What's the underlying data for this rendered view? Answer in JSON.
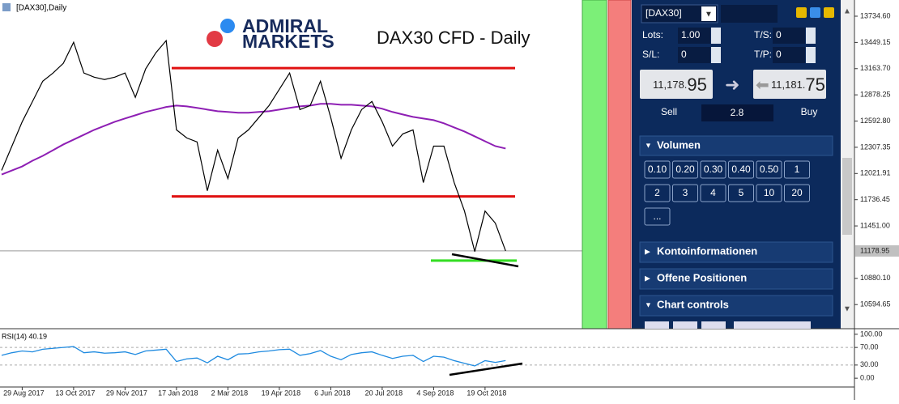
{
  "header": {
    "symbol": "[DAX30],Daily",
    "logo_top": "ADMIRAL",
    "logo_bottom": "MARKETS",
    "title": "DAX30 CFD - Daily"
  },
  "price_chart": {
    "categories": [
      null,
      null,
      "29 Aug 2017",
      null,
      null,
      null,
      null,
      "13 Oct 2017",
      null,
      null,
      null,
      null,
      "29 Nov 2017",
      null,
      null,
      null,
      null,
      "17 Jan 2018",
      null,
      null,
      null,
      null,
      "2 Mar 2018",
      null,
      null,
      null,
      null,
      "19 Apr 2018",
      null,
      null,
      null,
      null,
      "6 Jun 2018",
      null,
      null,
      null,
      null,
      "20 Jul 2018",
      null,
      null,
      null,
      null,
      "4 Sep 2018",
      null,
      null,
      null,
      null,
      "19 Oct 2018",
      null,
      null
    ],
    "close": [
      12055,
      12320,
      12585,
      12806,
      13027,
      13116,
      13222,
      13451,
      13116,
      13071,
      13045,
      13071,
      13116,
      12851,
      13160,
      13337,
      13469,
      12497,
      12409,
      12366,
      11834,
      12276,
      11967,
      12409,
      12497,
      12630,
      12762,
      12939,
      13116,
      12718,
      12762,
      13027,
      12630,
      12187,
      12497,
      12718,
      12806,
      12585,
      12320,
      12453,
      12497,
      11923,
      12320,
      12320,
      11923,
      11613,
      11172,
      11613,
      11481,
      11178.95
    ],
    "ma": [
      12011,
      12055,
      12099,
      12161,
      12214,
      12276,
      12338,
      12391,
      12444,
      12497,
      12541,
      12585,
      12621,
      12656,
      12692,
      12718,
      12746,
      12762,
      12753,
      12736,
      12718,
      12700,
      12692,
      12683,
      12683,
      12692,
      12700,
      12718,
      12736,
      12753,
      12762,
      12780,
      12780,
      12771,
      12771,
      12762,
      12753,
      12727,
      12692,
      12665,
      12638,
      12621,
      12603,
      12568,
      12523,
      12479,
      12426,
      12373,
      12320,
      12294
    ],
    "ma_color": "#8e1fb4",
    "ylim": [
      10332,
      13911
    ],
    "yticks": [
      {
        "value": 13734.6,
        "label": "13734.60"
      },
      13449.15,
      {
        "value": 13163.7,
        "label": "13163.70"
      },
      12878.25,
      {
        "value": 12592.8,
        "label": "12592.80"
      },
      12307.35,
      12021.91,
      11736.45,
      {
        "value": 11451,
        "label": "11451.00"
      },
      {
        "value": 10880.1,
        "label": "10880.10"
      },
      10594.65
    ],
    "last_price": 11178.95,
    "levels": [
      {
        "value": 13169,
        "color": "#e01010"
      },
      {
        "value": 11772,
        "color": "#e01010"
      },
      {
        "value": 11074,
        "color": "#33dd22"
      }
    ]
  },
  "rsi_chart": {
    "title": "RSI(14) 40.19",
    "values": [
      52,
      58,
      62,
      60,
      66,
      68,
      70,
      72,
      58,
      60,
      57,
      58,
      60,
      54,
      62,
      64,
      66,
      38,
      44,
      46,
      35,
      50,
      42,
      55,
      56,
      60,
      62,
      65,
      66,
      52,
      56,
      63,
      50,
      42,
      54,
      58,
      60,
      52,
      45,
      50,
      52,
      38,
      50,
      48,
      40,
      34,
      28,
      40,
      36,
      40.19
    ],
    "color": "#1e8ae0",
    "ylim": [
      -20,
      109
    ],
    "yticks": [
      {
        "value": 100,
        "label": "100.00"
      },
      {
        "value": 70,
        "label": "70.00"
      },
      {
        "value": 30,
        "label": "30.00"
      },
      {
        "value": 0,
        "label": "0.00"
      }
    ]
  },
  "panel": {
    "symbol": "[DAX30]",
    "lots_label": "Lots:",
    "lots": "1.00",
    "ts_label": "T/S:",
    "ts": "0",
    "sl_label": "S/L:",
    "sl": "0",
    "tp_label": "T/P:",
    "tp": "0",
    "sell_small": "11,178.",
    "sell_big": "95",
    "buy_small": "11,181.",
    "buy_big": "75",
    "sell": "Sell",
    "spread": "2.8",
    "buy": "Buy",
    "volume_title": "Volumen",
    "volume_buttons": [
      "0.10",
      "0.20",
      "0.30",
      "0.40",
      "0.50",
      "1",
      "2",
      "3",
      "4",
      "5",
      "10",
      "20",
      "..."
    ],
    "sections": [
      "Kontoinformationen",
      "Offene Positionen",
      "Chart controls"
    ]
  }
}
